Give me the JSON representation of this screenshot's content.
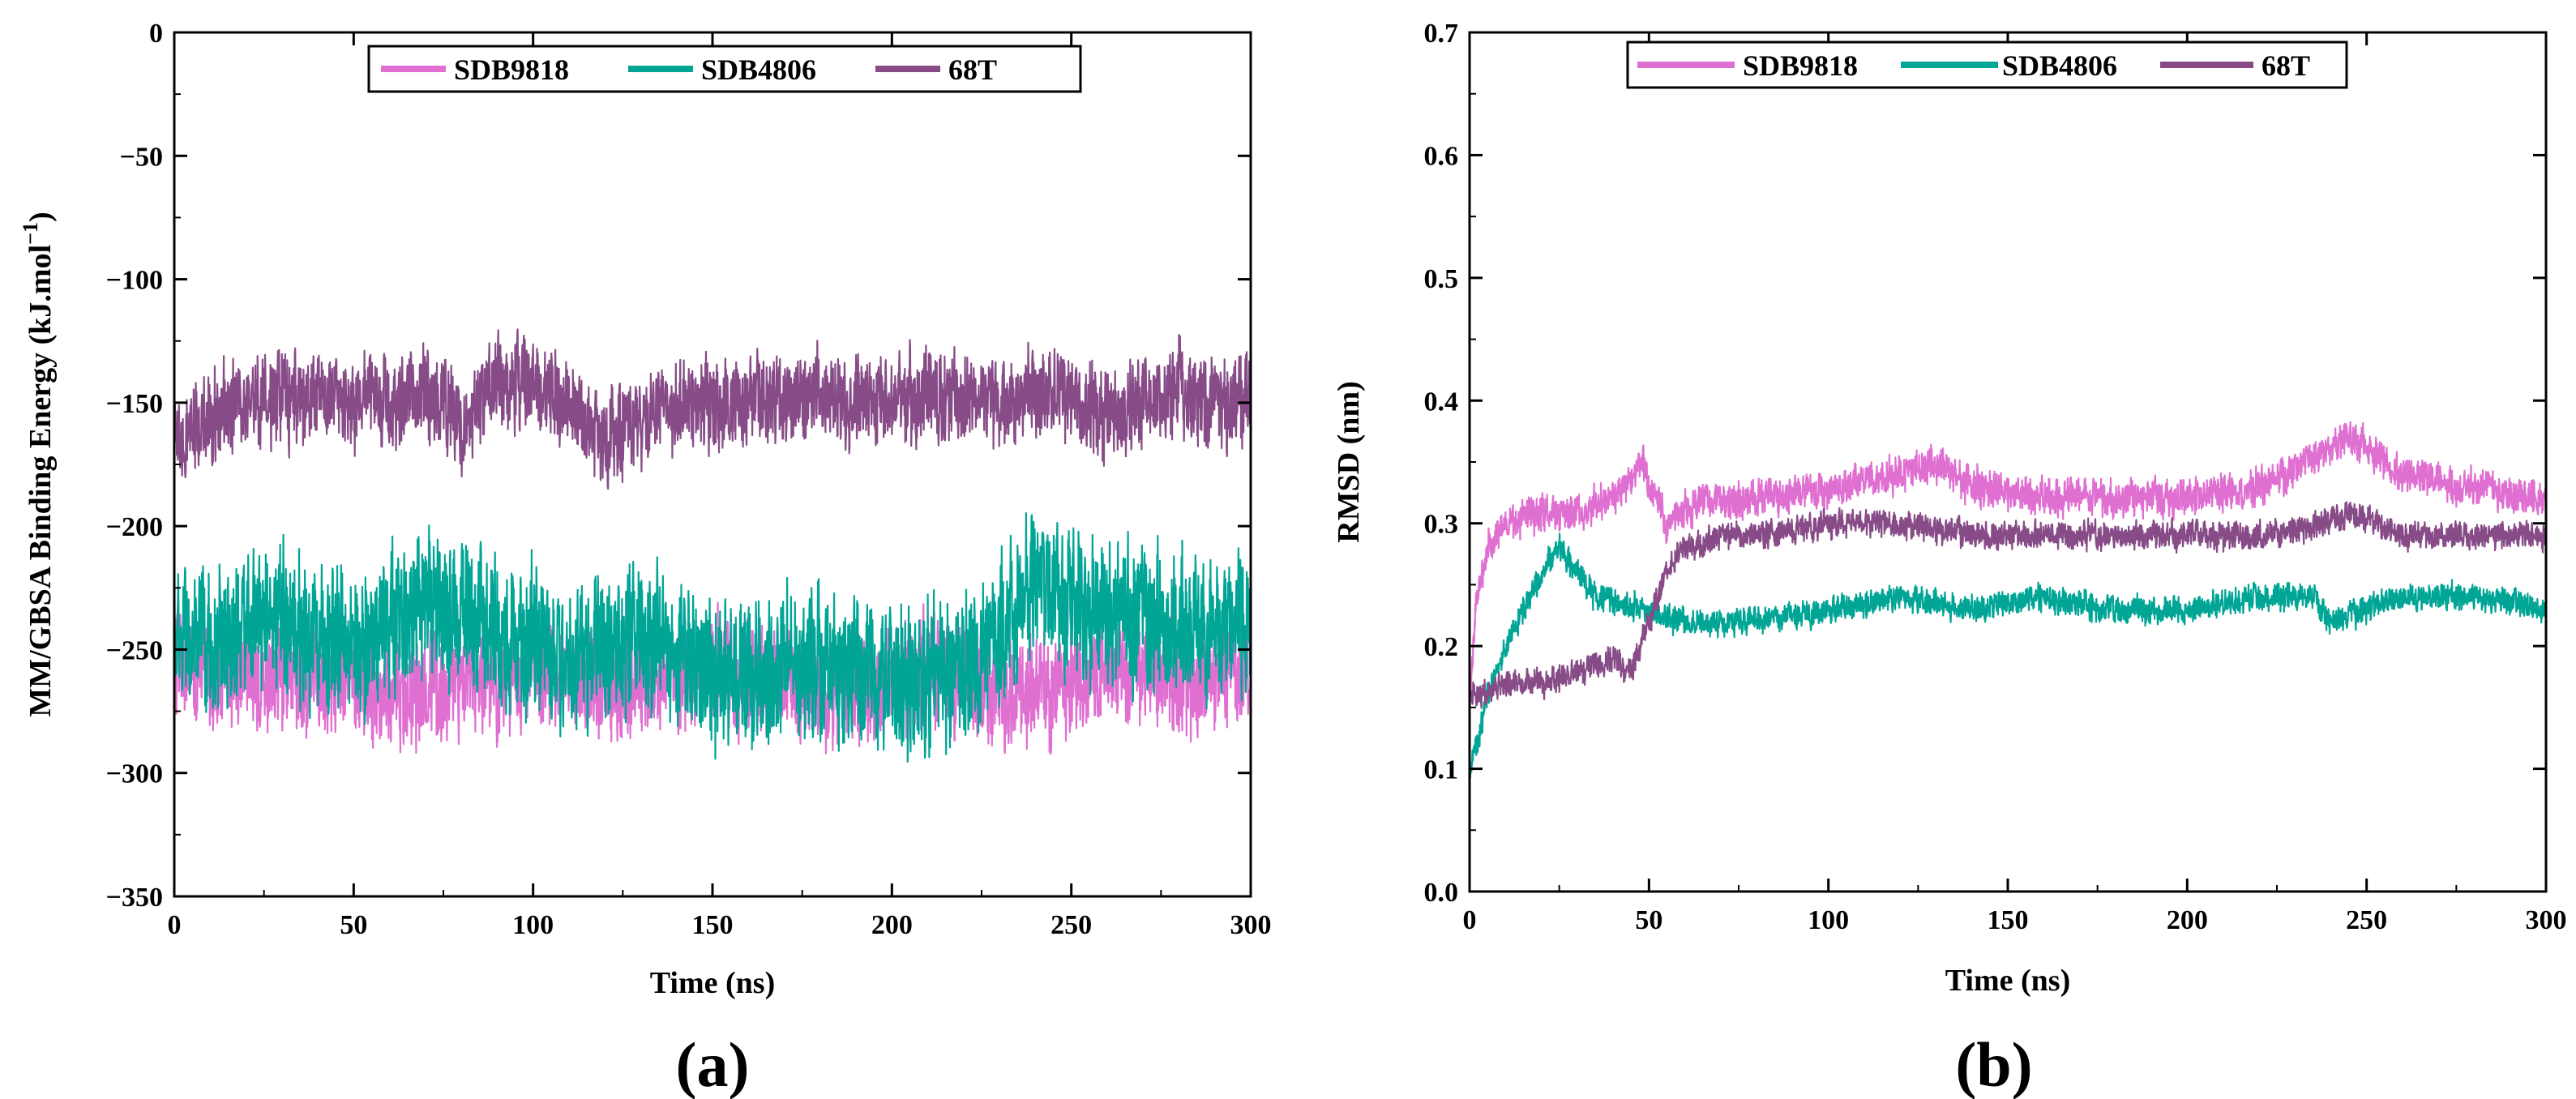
{
  "chart_data": [
    {
      "type": "line",
      "panel_label": "(a)",
      "xlabel": "Time (ns)",
      "ylabel_main": "MM/GBSA Binding Energy (kJ.mol",
      "ylabel_sup": "−1",
      "ylabel_close": ")",
      "xlim": [
        0,
        300
      ],
      "ylim": [
        -350,
        0
      ],
      "x_ticks": [
        0,
        50,
        100,
        150,
        200,
        250,
        300
      ],
      "x_tick_labels": [
        "0",
        "50",
        "100",
        "150",
        "200",
        "250",
        "300"
      ],
      "y_ticks": [
        0,
        -50,
        -100,
        -150,
        -200,
        -250,
        -300,
        -350
      ],
      "y_tick_labels": [
        "0",
        "−50",
        "−100",
        "−150",
        "−200",
        "−250",
        "−300",
        "−350"
      ],
      "legend_position": "top-center",
      "series": [
        {
          "name": "SDB9818",
          "color": "#e06fd2",
          "x": [
            0,
            10,
            20,
            30,
            40,
            50,
            60,
            70,
            80,
            90,
            100,
            110,
            120,
            130,
            140,
            150,
            160,
            170,
            180,
            190,
            200,
            210,
            220,
            230,
            240,
            250,
            260,
            270,
            280,
            290,
            300
          ],
          "mean": [
            -255,
            -260,
            -258,
            -262,
            -260,
            -264,
            -268,
            -270,
            -265,
            -262,
            -258,
            -262,
            -266,
            -262,
            -260,
            -258,
            -262,
            -265,
            -268,
            -266,
            -262,
            -260,
            -262,
            -266,
            -268,
            -262,
            -260,
            -258,
            -262,
            -264,
            -262
          ],
          "spread": [
            30,
            30,
            28,
            30,
            30,
            28,
            30,
            30,
            28,
            30,
            30,
            28,
            30,
            30,
            28,
            30,
            30,
            28,
            30,
            30,
            28,
            30,
            30,
            28,
            30,
            30,
            28,
            30,
            30,
            28,
            30
          ]
        },
        {
          "name": "SDB4806",
          "color": "#00a596",
          "x": [
            0,
            10,
            20,
            30,
            40,
            50,
            60,
            70,
            80,
            90,
            100,
            110,
            120,
            130,
            140,
            150,
            160,
            170,
            180,
            190,
            200,
            210,
            220,
            230,
            240,
            250,
            260,
            270,
            280,
            290,
            300
          ],
          "mean": [
            -245,
            -250,
            -240,
            -238,
            -245,
            -248,
            -240,
            -232,
            -235,
            -242,
            -248,
            -255,
            -250,
            -245,
            -250,
            -260,
            -262,
            -258,
            -255,
            -258,
            -265,
            -262,
            -258,
            -242,
            -225,
            -230,
            -235,
            -238,
            -240,
            -238,
            -240
          ],
          "spread": [
            40,
            40,
            38,
            40,
            40,
            38,
            40,
            40,
            38,
            40,
            40,
            38,
            40,
            40,
            38,
            40,
            40,
            38,
            40,
            40,
            38,
            40,
            40,
            38,
            40,
            40,
            38,
            40,
            40,
            38,
            40
          ]
        },
        {
          "name": "68T",
          "color": "#874c87",
          "x": [
            0,
            10,
            20,
            30,
            40,
            50,
            60,
            70,
            80,
            90,
            100,
            110,
            120,
            130,
            140,
            150,
            160,
            170,
            180,
            190,
            200,
            210,
            220,
            230,
            240,
            250,
            260,
            270,
            280,
            290,
            300
          ],
          "mean": [
            -170,
            -155,
            -150,
            -148,
            -148,
            -150,
            -150,
            -145,
            -158,
            -140,
            -145,
            -150,
            -165,
            -155,
            -150,
            -152,
            -150,
            -148,
            -150,
            -148,
            -148,
            -145,
            -148,
            -150,
            -145,
            -148,
            -155,
            -150,
            -145,
            -150,
            -148
          ],
          "spread": [
            25,
            25,
            24,
            25,
            25,
            24,
            25,
            25,
            24,
            25,
            25,
            24,
            25,
            25,
            24,
            25,
            25,
            24,
            25,
            25,
            24,
            25,
            25,
            24,
            25,
            25,
            24,
            25,
            25,
            24,
            25
          ]
        }
      ]
    },
    {
      "type": "line",
      "panel_label": "(b)",
      "xlabel": "Time (ns)",
      "ylabel": "RMSD (nm)",
      "xlim": [
        0,
        300
      ],
      "ylim": [
        0.0,
        0.7
      ],
      "x_ticks": [
        0,
        50,
        100,
        150,
        200,
        250,
        300
      ],
      "x_tick_labels": [
        "0",
        "50",
        "100",
        "150",
        "200",
        "250",
        "300"
      ],
      "y_ticks": [
        0.0,
        0.1,
        0.2,
        0.3,
        0.4,
        0.5,
        0.6,
        0.7
      ],
      "y_tick_labels": [
        "0.0",
        "0.1",
        "0.2",
        "0.3",
        "0.4",
        "0.5",
        "0.6",
        "0.7"
      ],
      "legend_position": "top-center",
      "series": [
        {
          "name": "SDB9818",
          "color": "#e06fd2",
          "x": [
            0,
            2,
            5,
            10,
            20,
            30,
            40,
            48,
            55,
            65,
            80,
            100,
            120,
            130,
            140,
            160,
            180,
            200,
            220,
            240,
            245,
            260,
            280,
            300
          ],
          "mean": [
            0.15,
            0.24,
            0.28,
            0.3,
            0.31,
            0.31,
            0.32,
            0.35,
            0.3,
            0.32,
            0.32,
            0.33,
            0.34,
            0.35,
            0.33,
            0.32,
            0.32,
            0.32,
            0.33,
            0.36,
            0.37,
            0.34,
            0.33,
            0.32
          ],
          "spread": [
            0.02,
            0.02,
            0.02,
            0.02,
            0.02,
            0.02,
            0.02,
            0.02,
            0.02,
            0.02,
            0.02,
            0.02,
            0.02,
            0.02,
            0.02,
            0.02,
            0.02,
            0.02,
            0.02,
            0.02,
            0.02,
            0.02,
            0.02,
            0.02
          ]
        },
        {
          "name": "SDB4806",
          "color": "#00a596",
          "x": [
            0,
            2,
            5,
            10,
            20,
            25,
            35,
            50,
            60,
            80,
            100,
            120,
            140,
            160,
            180,
            200,
            220,
            235,
            240,
            260,
            280,
            300
          ],
          "mean": [
            0.1,
            0.12,
            0.16,
            0.2,
            0.26,
            0.28,
            0.24,
            0.23,
            0.22,
            0.22,
            0.23,
            0.24,
            0.23,
            0.24,
            0.23,
            0.23,
            0.24,
            0.24,
            0.22,
            0.24,
            0.24,
            0.23
          ],
          "spread": [
            0.015,
            0.015,
            0.015,
            0.015,
            0.015,
            0.015,
            0.015,
            0.015,
            0.015,
            0.015,
            0.015,
            0.015,
            0.015,
            0.015,
            0.015,
            0.015,
            0.015,
            0.015,
            0.015,
            0.015,
            0.015,
            0.015
          ]
        },
        {
          "name": "68T",
          "color": "#874c87",
          "x": [
            0,
            5,
            10,
            20,
            30,
            40,
            45,
            50,
            55,
            60,
            70,
            80,
            100,
            120,
            140,
            160,
            180,
            200,
            220,
            240,
            245,
            260,
            280,
            300
          ],
          "mean": [
            0.16,
            0.16,
            0.17,
            0.17,
            0.18,
            0.19,
            0.18,
            0.22,
            0.26,
            0.28,
            0.29,
            0.29,
            0.3,
            0.3,
            0.29,
            0.29,
            0.29,
            0.29,
            0.29,
            0.3,
            0.31,
            0.29,
            0.29,
            0.29
          ],
          "spread": [
            0.015,
            0.015,
            0.015,
            0.015,
            0.015,
            0.015,
            0.015,
            0.015,
            0.015,
            0.015,
            0.015,
            0.015,
            0.015,
            0.015,
            0.015,
            0.015,
            0.015,
            0.015,
            0.015,
            0.015,
            0.015,
            0.015,
            0.015,
            0.015
          ]
        }
      ]
    }
  ]
}
